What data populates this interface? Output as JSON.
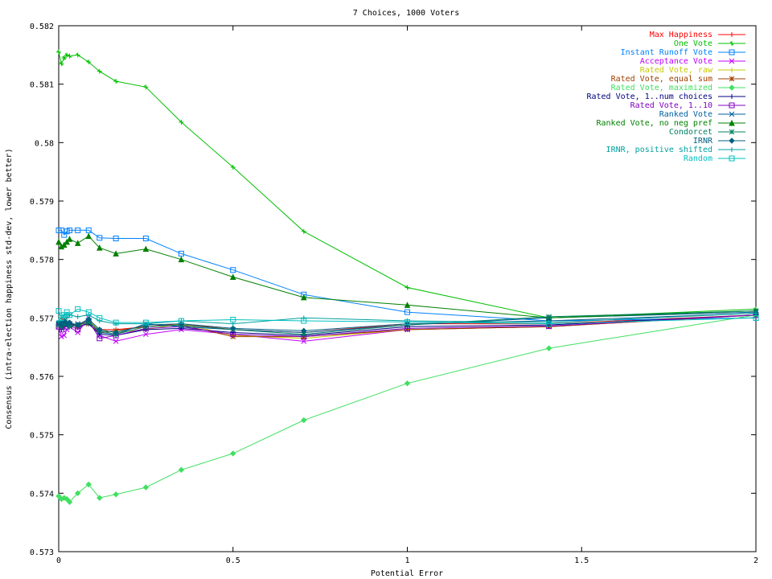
{
  "chart_data": {
    "type": "line",
    "title": "7 Choices, 1000 Voters",
    "xlabel": "Potential Error",
    "ylabel": "Consensus (intra-election happiness std-dev, lower better)",
    "xlim": [
      0,
      2
    ],
    "ylim": [
      0.573,
      0.582
    ],
    "xticks": [
      "0",
      "0.5",
      "1",
      "1.5",
      "2"
    ],
    "yticks": [
      "0.573",
      "0.574",
      "0.575",
      "0.576",
      "0.577",
      "0.578",
      "0.579",
      "0.58",
      "0.581",
      "0.582"
    ],
    "grid": false,
    "legend_position": "top-right",
    "x": [
      0,
      0.0078,
      0.0156,
      0.0234,
      0.0312,
      0.0547,
      0.0859,
      0.1172,
      0.1641,
      0.25,
      0.3516,
      0.5,
      0.7031,
      1.0,
      1.4062,
      2.0
    ],
    "series": [
      {
        "name": "Max Happiness",
        "color": "#ff0000",
        "marker": "plus",
        "values": [
          0.57685,
          0.5769,
          0.57688,
          0.57692,
          0.5769,
          0.57688,
          0.57695,
          0.5768,
          0.5768,
          0.57685,
          0.5769,
          0.5768,
          0.57675,
          0.5769,
          0.5769,
          0.57705
        ]
      },
      {
        "name": "One Vote",
        "color": "#00c000",
        "marker": "cross",
        "values": [
          0.58155,
          0.58135,
          0.58145,
          0.5815,
          0.58148,
          0.5815,
          0.58138,
          0.58122,
          0.58105,
          0.58095,
          0.58035,
          0.57958,
          0.57848,
          0.57752,
          0.577,
          0.57715
        ]
      },
      {
        "name": "Instant Runoff Vote",
        "color": "#0080ff",
        "marker": "square",
        "values": [
          0.5785,
          0.5785,
          0.57842,
          0.57848,
          0.5785,
          0.5785,
          0.5785,
          0.57837,
          0.57836,
          0.57836,
          0.5781,
          0.57782,
          0.5774,
          0.5771,
          0.57695,
          0.577
        ]
      },
      {
        "name": "Acceptance Vote",
        "color": "#c000ff",
        "marker": "x",
        "values": [
          0.57685,
          0.57668,
          0.5767,
          0.5768,
          0.57685,
          0.57675,
          0.577,
          0.5767,
          0.5766,
          0.57672,
          0.5768,
          0.57672,
          0.5766,
          0.5768,
          0.57685,
          0.57705
        ]
      },
      {
        "name": "Rated Vote, raw",
        "color": "#c8c800",
        "marker": "plus",
        "values": [
          0.57685,
          0.5769,
          0.57695,
          0.5769,
          0.57688,
          0.57685,
          0.57695,
          0.5768,
          0.57675,
          0.5768,
          0.5769,
          0.5767,
          0.57665,
          0.5768,
          0.57685,
          0.57705
        ]
      },
      {
        "name": "Rated Vote, equal sum",
        "color": "#a04000",
        "marker": "star",
        "values": [
          0.5769,
          0.57685,
          0.57695,
          0.57688,
          0.5769,
          0.57685,
          0.5769,
          0.57675,
          0.57678,
          0.57685,
          0.57688,
          0.57668,
          0.57668,
          0.5768,
          0.57685,
          0.57705
        ]
      },
      {
        "name": "Rated Vote, maximized",
        "color": "#40e060",
        "marker": "diamond",
        "values": [
          0.57395,
          0.5739,
          0.57392,
          0.5739,
          0.57385,
          0.574,
          0.57415,
          0.57392,
          0.57398,
          0.5741,
          0.5744,
          0.57468,
          0.57525,
          0.57588,
          0.57648,
          0.57705
        ]
      },
      {
        "name": "Rated Vote, 1..num choices",
        "color": "#000080",
        "marker": "plus",
        "values": [
          0.5769,
          0.5768,
          0.57685,
          0.57688,
          0.5769,
          0.57685,
          0.5769,
          0.57672,
          0.5767,
          0.5768,
          0.57682,
          0.57675,
          0.5767,
          0.57685,
          0.57688,
          0.57705
        ]
      },
      {
        "name": "Rated Vote, 1..10",
        "color": "#8000c0",
        "marker": "square",
        "values": [
          0.57685,
          0.5768,
          0.5769,
          0.57685,
          0.57688,
          0.5768,
          0.57695,
          0.57665,
          0.5767,
          0.57682,
          0.57685,
          0.57672,
          0.57668,
          0.57682,
          0.57686,
          0.57705
        ]
      },
      {
        "name": "Ranked Vote",
        "color": "#0060a0",
        "marker": "x",
        "values": [
          0.5769,
          0.57685,
          0.5769,
          0.57692,
          0.57688,
          0.5769,
          0.57695,
          0.57675,
          0.57672,
          0.5769,
          0.57685,
          0.5768,
          0.57675,
          0.57688,
          0.577,
          0.5771
        ]
      },
      {
        "name": "Ranked Vote, no neg pref",
        "color": "#008000",
        "marker": "triangle",
        "values": [
          0.5783,
          0.57822,
          0.57825,
          0.5783,
          0.57835,
          0.57828,
          0.5784,
          0.5782,
          0.5781,
          0.57818,
          0.578,
          0.5777,
          0.57735,
          0.57722,
          0.577,
          0.57712
        ]
      },
      {
        "name": "Condorcet",
        "color": "#008060",
        "marker": "star",
        "values": [
          0.57688,
          0.57685,
          0.5769,
          0.5769,
          0.57685,
          0.57688,
          0.57692,
          0.57678,
          0.57672,
          0.57685,
          0.57688,
          0.5768,
          0.57672,
          0.57688,
          0.57702,
          0.57712
        ]
      },
      {
        "name": "IRNR",
        "color": "#006080",
        "marker": "diamond",
        "values": [
          0.57692,
          0.57688,
          0.57695,
          0.5769,
          0.57692,
          0.57688,
          0.57698,
          0.5768,
          0.57675,
          0.57688,
          0.5769,
          0.57682,
          0.57678,
          0.5769,
          0.57695,
          0.57708
        ]
      },
      {
        "name": "IRNR, positive shifted",
        "color": "#00a0a0",
        "marker": "plus",
        "values": [
          0.57695,
          0.577,
          0.57705,
          0.577,
          0.57705,
          0.57702,
          0.57705,
          0.57695,
          0.5769,
          0.5769,
          0.57695,
          0.5769,
          0.577,
          0.57695,
          0.57692,
          0.57708
        ]
      },
      {
        "name": "Random",
        "color": "#00c0c0",
        "marker": "square",
        "values": [
          0.57712,
          0.577,
          0.57705,
          0.5771,
          0.57705,
          0.57715,
          0.5771,
          0.577,
          0.57692,
          0.57692,
          0.57695,
          0.57697,
          0.57695,
          0.57693,
          0.5769,
          0.577
        ]
      }
    ]
  }
}
